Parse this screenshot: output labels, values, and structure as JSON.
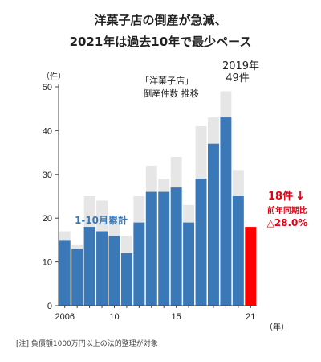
{
  "title_line1": "洋菓子店の倒産が急減、",
  "title_line2": "2021年は過去10年で最少ペース",
  "note": "[注] 負債額1000万円以上の法的整理が対象",
  "chart_data": {
    "type": "bar",
    "x": [
      2006,
      2007,
      2008,
      2009,
      2010,
      2011,
      2012,
      2013,
      2014,
      2015,
      2016,
      2017,
      2018,
      2019,
      2020,
      2021
    ],
    "x_tick_labels": {
      "2006": "2006",
      "2010": "10",
      "2015": "15",
      "2021": "21"
    },
    "series": [
      {
        "name": "",
        "values": [
          17,
          14,
          25,
          24,
          20,
          16,
          25,
          32,
          29,
          34,
          23,
          41,
          43,
          49,
          31,
          null
        ],
        "color": "#e6e6e6"
      },
      {
        "name": "1-10月累計",
        "values": [
          15,
          13,
          18,
          17,
          16,
          12,
          19,
          26,
          26,
          27,
          19,
          29,
          37,
          43,
          25,
          18
        ],
        "color": "#3a78b8"
      }
    ],
    "highlight": {
      "x": 2021,
      "color": "#ff0000"
    },
    "ylim": [
      0,
      50
    ],
    "y_ticks": [
      0,
      10,
      20,
      30,
      40,
      50
    ],
    "y_unit": "（件）",
    "x_unit": "（年）",
    "annotations": {
      "legend_line1": "「洋菓子店」",
      "legend_line2": "倒産件数 推移",
      "peak_line1": "2019年",
      "peak_line2": "49件",
      "series_label": "1-10月累計",
      "current_value": "18件",
      "arrow": "↓",
      "yoy_label": "前年同期比",
      "yoy_value": "△28.0%"
    },
    "colors": {
      "full_year": "#e6e6e6",
      "cumulative": "#3a78b8",
      "current": "#ff0000",
      "label_blue": "#3a78b8",
      "label_red": "#e60012"
    }
  }
}
